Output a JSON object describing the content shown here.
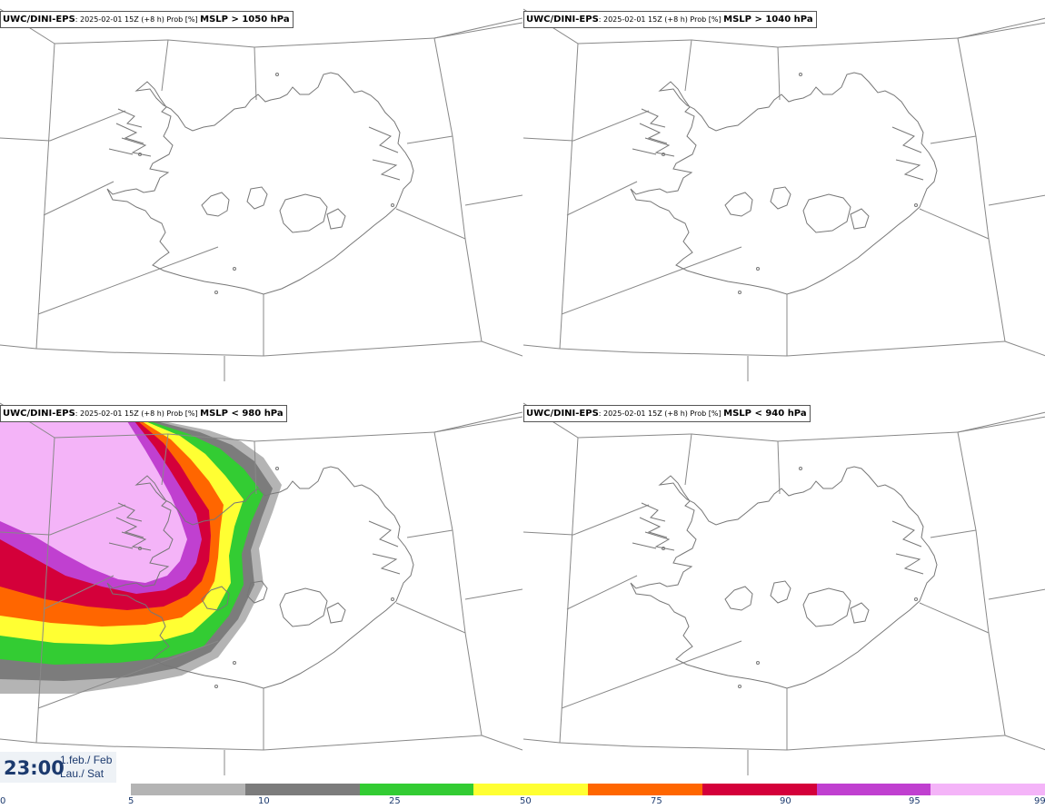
{
  "panels": [
    {
      "model": "UWC/DINI-EPS",
      "meta": ": 2025-02-01 15Z (+8 h) Prob [%] ",
      "threshold": "MSLP > 1050 hPa",
      "has_field": false
    },
    {
      "model": "UWC/DINI-EPS",
      "meta": ": 2025-02-01 15Z (+8 h) Prob [%] ",
      "threshold": "MSLP > 1040 hPa",
      "has_field": false
    },
    {
      "model": "UWC/DINI-EPS",
      "meta": ": 2025-02-01 15Z (+8 h) Prob [%] ",
      "threshold": "MSLP < 980 hPa",
      "has_field": true
    },
    {
      "model": "UWC/DINI-EPS",
      "meta": ": 2025-02-01 15Z (+8 h) Prob [%] ",
      "threshold": "MSLP < 940 hPa",
      "has_field": false
    }
  ],
  "valid_time": {
    "clock": "23:00",
    "date_line1": "1.feb./ Feb",
    "date_line2": "Lau./ Sat"
  },
  "legend": {
    "ticks": [
      "0",
      "5",
      "10",
      "25",
      "50",
      "75",
      "90",
      "95",
      "99"
    ],
    "colors": [
      "#b4b4b4",
      "#7c7c7c",
      "#33cc33",
      "#ffff33",
      "#ff6600",
      "#d4003a",
      "#c040d0",
      "#f4b4f8"
    ]
  },
  "styles": {
    "coast": "#777777",
    "grid": "#888888",
    "text": "#1c3a6e"
  }
}
